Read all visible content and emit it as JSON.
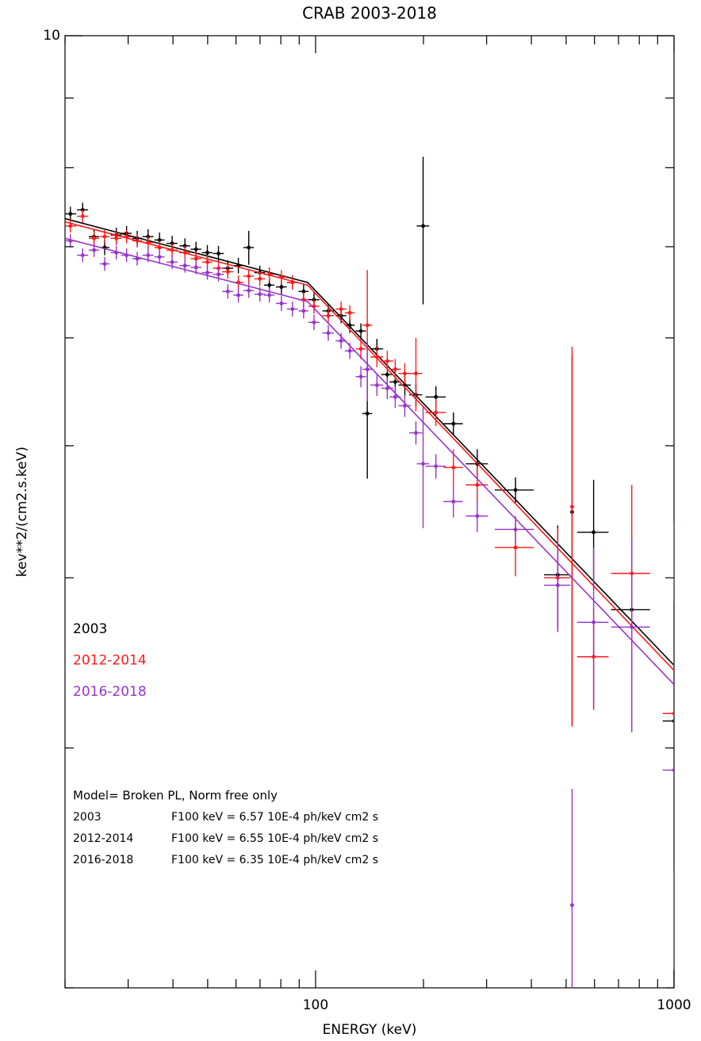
{
  "chart_data": {
    "type": "scatter",
    "title": "CRAB 2003-2018",
    "xlabel": "ENERGY (keV)",
    "ylabel": "kev**2/(cm2.s.keV)",
    "xscale": "log",
    "yscale": "log",
    "xlim": [
      20,
      1000
    ],
    "ylim": [
      2,
      10
    ],
    "xticks": [
      100,
      1000
    ],
    "xminor_ticks": [
      20,
      30,
      40,
      50,
      60,
      70,
      80,
      90,
      200,
      300,
      400,
      500,
      600,
      700,
      800,
      900
    ],
    "yticks": [
      10
    ],
    "yminor_ticks": [
      2,
      3,
      4,
      5,
      6,
      7,
      8,
      9
    ],
    "legend": "left",
    "series": [
      {
        "name": "2003",
        "color": "#000000",
        "x": [
          20.7,
          22.4,
          24.1,
          25.8,
          27.8,
          29.7,
          31.8,
          34.1,
          36.7,
          39.8,
          43.2,
          46.4,
          49.9,
          53.6,
          56.9,
          60.9,
          65.1,
          69.9,
          74.3,
          80.3,
          86.2,
          92.6,
          99.0,
          108.5,
          117.8,
          124.6,
          133.8,
          139.4,
          148.3,
          158.5,
          166.8,
          177.4,
          190.5,
          199.5,
          216.6,
          242.4,
          282.5,
          361.2,
          473.8,
          519.5,
          596.6,
          762.3,
          1000
        ],
        "xerr": [
          0.8,
          0.8,
          0.8,
          0.8,
          1,
          1,
          1,
          1.2,
          1.2,
          1.4,
          1.5,
          1.6,
          1.7,
          1.9,
          2,
          2,
          2.2,
          2.4,
          2.5,
          2.8,
          3,
          3,
          3.5,
          4,
          4,
          4,
          4.5,
          4.5,
          6,
          6,
          6,
          7,
          8,
          8,
          14,
          15,
          20,
          45,
          40,
          5,
          60,
          95,
          70
        ],
        "values": [
          7.4,
          7.45,
          7.12,
          6.99,
          7.14,
          7.16,
          7.1,
          7.12,
          7.08,
          7.04,
          7.01,
          6.97,
          6.93,
          6.92,
          6.75,
          6.78,
          6.99,
          6.7,
          6.56,
          6.54,
          6.59,
          6.49,
          6.4,
          6.28,
          6.23,
          6.13,
          6.07,
          5.28,
          5.89,
          5.64,
          5.57,
          5.54,
          5.45,
          7.25,
          5.43,
          5.19,
          4.85,
          4.64,
          4.02,
          4.47,
          4.32,
          3.79,
          3.14
        ],
        "yerr": [
          0.09,
          0.09,
          0.09,
          0.09,
          0.09,
          0.09,
          0.09,
          0.09,
          0.09,
          0.09,
          0.09,
          0.09,
          0.09,
          0.09,
          0.09,
          0.09,
          0.2,
          0.08,
          0.08,
          0.08,
          0.08,
          0.08,
          0.08,
          0.08,
          0.08,
          0.08,
          0.08,
          0.55,
          0.1,
          0.1,
          0.1,
          0.1,
          0.1,
          0.9,
          0.1,
          0.1,
          0.12,
          0.1,
          0.35,
          1.35,
          0.4,
          0.1,
          0.7
        ],
        "model": {
          "x": [
            20,
            95,
            1000
          ],
          "values": [
            7.34,
            6.59,
            3.45
          ]
        }
      },
      {
        "name": "2012-2014",
        "color": "#ff1a1a",
        "x": [
          20.7,
          22.4,
          24.1,
          25.8,
          27.8,
          29.7,
          31.8,
          34.1,
          36.7,
          39.8,
          43.2,
          46.4,
          49.9,
          53.6,
          56.9,
          60.9,
          65.1,
          69.9,
          74.3,
          80.3,
          86.2,
          92.6,
          99.0,
          108.5,
          117.8,
          124.6,
          133.8,
          139.4,
          148.3,
          158.5,
          166.8,
          177.4,
          190.5,
          216.6,
          242.4,
          282.5,
          361.2,
          473.8,
          519.5,
          596.6,
          762.3,
          1000
        ],
        "xerr": [
          0.8,
          0.8,
          0.8,
          0.8,
          1,
          1,
          1,
          1.2,
          1.2,
          1.4,
          1.5,
          1.6,
          1.7,
          1.9,
          2,
          2,
          2.2,
          2.4,
          2.5,
          2.8,
          3,
          3,
          3.5,
          4,
          4,
          4,
          4.5,
          4.5,
          6,
          6,
          6,
          7,
          8,
          14,
          15,
          20,
          45,
          40,
          5,
          60,
          95,
          70
        ],
        "values": [
          7.25,
          7.37,
          7.1,
          7.12,
          7.1,
          7.12,
          7.07,
          7.05,
          6.99,
          6.96,
          6.93,
          6.86,
          6.82,
          6.75,
          6.71,
          6.59,
          6.66,
          6.63,
          6.68,
          6.65,
          6.59,
          6.4,
          6.33,
          6.23,
          6.3,
          6.26,
          5.89,
          6.13,
          5.81,
          5.77,
          5.69,
          5.65,
          5.65,
          5.29,
          4.82,
          4.68,
          4.21,
          4.0,
          4.51,
          3.5,
          4.03,
          3.18
        ],
        "yerr": [
          0.08,
          0.08,
          0.08,
          0.08,
          0.08,
          0.08,
          0.08,
          0.08,
          0.08,
          0.08,
          0.08,
          0.08,
          0.08,
          0.08,
          0.08,
          0.08,
          0.08,
          0.08,
          0.08,
          0.08,
          0.08,
          0.08,
          0.08,
          0.08,
          0.08,
          0.08,
          0.1,
          0.6,
          0.1,
          0.1,
          0.1,
          0.1,
          0.35,
          0.12,
          0.15,
          0.15,
          0.2,
          0.35,
          1.4,
          0.3,
          0.65,
          1.2
        ],
        "model": {
          "x": [
            20,
            95,
            1000
          ],
          "values": [
            7.3,
            6.56,
            3.42
          ]
        }
      },
      {
        "name": "2016-2018",
        "color": "#9932cc",
        "x": [
          20.7,
          22.4,
          24.1,
          25.8,
          27.8,
          29.7,
          31.8,
          34.1,
          36.7,
          39.8,
          43.2,
          46.4,
          49.9,
          53.6,
          56.9,
          60.9,
          65.1,
          69.9,
          74.3,
          80.3,
          86.2,
          92.6,
          99.0,
          108.5,
          117.8,
          124.6,
          133.8,
          139.4,
          148.3,
          158.5,
          166.8,
          177.4,
          190.5,
          199.5,
          216.6,
          242.4,
          282.5,
          361.2,
          473.8,
          519.5,
          596.6,
          762.3,
          1000
        ],
        "xerr": [
          0.8,
          0.8,
          0.8,
          0.8,
          1,
          1,
          1,
          1.2,
          1.2,
          1.4,
          1.5,
          1.6,
          1.7,
          1.9,
          2,
          2,
          2.2,
          2.4,
          2.5,
          2.8,
          3,
          3,
          3.5,
          4,
          4,
          4,
          4.5,
          4.5,
          6,
          6,
          6,
          7,
          8,
          8,
          14,
          15,
          20,
          45,
          40,
          5,
          60,
          95,
          70
        ],
        "values": [
          7.07,
          6.9,
          6.96,
          6.8,
          6.93,
          6.9,
          6.86,
          6.9,
          6.88,
          6.82,
          6.78,
          6.76,
          6.7,
          6.68,
          6.49,
          6.45,
          6.5,
          6.46,
          6.45,
          6.36,
          6.3,
          6.28,
          6.16,
          6.05,
          5.97,
          5.87,
          5.62,
          5.69,
          5.54,
          5.51,
          5.43,
          5.35,
          5.11,
          4.85,
          4.83,
          4.55,
          4.44,
          4.34,
          3.95,
          2.3,
          3.71,
          3.68,
          2.89
        ],
        "yerr": [
          0.08,
          0.08,
          0.08,
          0.08,
          0.08,
          0.08,
          0.08,
          0.08,
          0.08,
          0.08,
          0.08,
          0.08,
          0.08,
          0.08,
          0.08,
          0.08,
          0.08,
          0.08,
          0.08,
          0.08,
          0.08,
          0.08,
          0.08,
          0.08,
          0.08,
          0.08,
          0.1,
          0.3,
          0.1,
          0.1,
          0.1,
          0.1,
          0.1,
          0.5,
          0.1,
          0.12,
          0.12,
          0.1,
          0.3,
          0.5,
          0.5,
          0.6,
          0.85
        ],
        "model": {
          "x": [
            20,
            95,
            1000
          ],
          "values": [
            7.1,
            6.38,
            3.34
          ]
        }
      }
    ],
    "annotation_title": "Model= Broken PL, Norm free only",
    "annotations": [
      {
        "label": "2003",
        "text": "F100 keV = 6.57 10E-4 ph/keV cm2 s"
      },
      {
        "label": "2012-2014",
        "text": "F100 keV = 6.55 10E-4 ph/keV cm2 s"
      },
      {
        "label": "2016-2018",
        "text": "F100 keV = 6.35 10E-4 ph/keV cm2 s"
      }
    ]
  }
}
